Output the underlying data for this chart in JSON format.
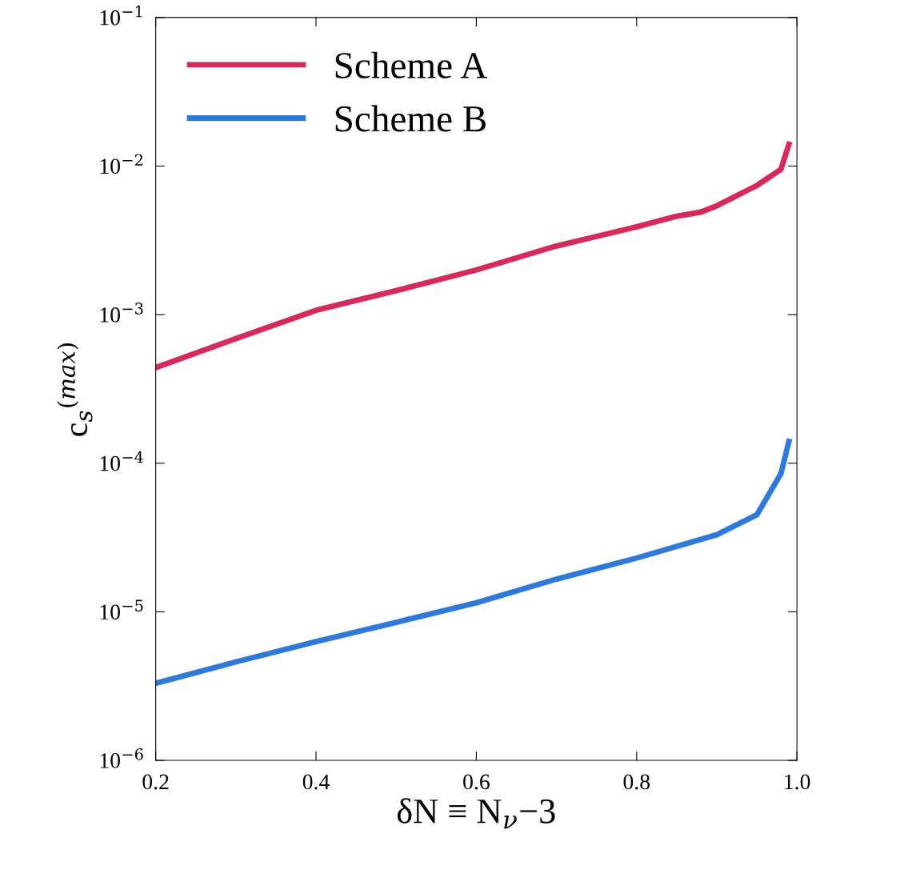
{
  "chart_data": {
    "type": "line",
    "xlabel": "δN ≡ N$_{ν}$−3",
    "ylabel": "c$_{s}$$^{(max)}$",
    "xlim": [
      0.2,
      1.0
    ],
    "xticks": [
      0.2,
      0.4,
      0.6,
      0.8,
      {
        "value": 1.0,
        "label": "1.0"
      }
    ],
    "ylim": [
      1e-06,
      0.1
    ],
    "yticks": [
      {
        "value": 1e-06,
        "label": "10$^{−6}$"
      },
      {
        "value": 1e-05,
        "label": "10$^{−5}$"
      },
      {
        "value": 0.0001,
        "label": "10$^{−4}$"
      },
      {
        "value": 0.001,
        "label": "10$^{−3}$"
      },
      {
        "value": 0.01,
        "label": "10$^{−2}$"
      },
      {
        "value": 0.1,
        "label": "10$^{−1}$"
      }
    ],
    "log": "y",
    "grid": false,
    "legend": "top left",
    "line_style": "solid",
    "marker": "none",
    "series": [
      {
        "name": "Scheme A",
        "color": "#d62a5a",
        "x": [
          0.2,
          0.3,
          0.4,
          0.5,
          0.6,
          0.7,
          0.8,
          0.85,
          0.88,
          0.9,
          0.95,
          0.98,
          0.99
        ],
        "values": [
          0.00044,
          0.00069,
          0.00107,
          0.00145,
          0.002,
          0.0029,
          0.0039,
          0.0046,
          0.0049,
          0.0054,
          0.0074,
          0.0095,
          0.014
        ]
      },
      {
        "name": "Scheme B",
        "color": "#2f7ad8",
        "x": [
          0.2,
          0.3,
          0.4,
          0.5,
          0.6,
          0.7,
          0.8,
          0.9,
          0.95,
          0.98,
          0.99
        ],
        "values": [
          3.3e-06,
          4.6e-06,
          6.3e-06,
          8.5e-06,
          1.15e-05,
          1.66e-05,
          2.3e-05,
          3.3e-05,
          4.5e-05,
          8.5e-05,
          0.00014
        ]
      }
    ]
  }
}
